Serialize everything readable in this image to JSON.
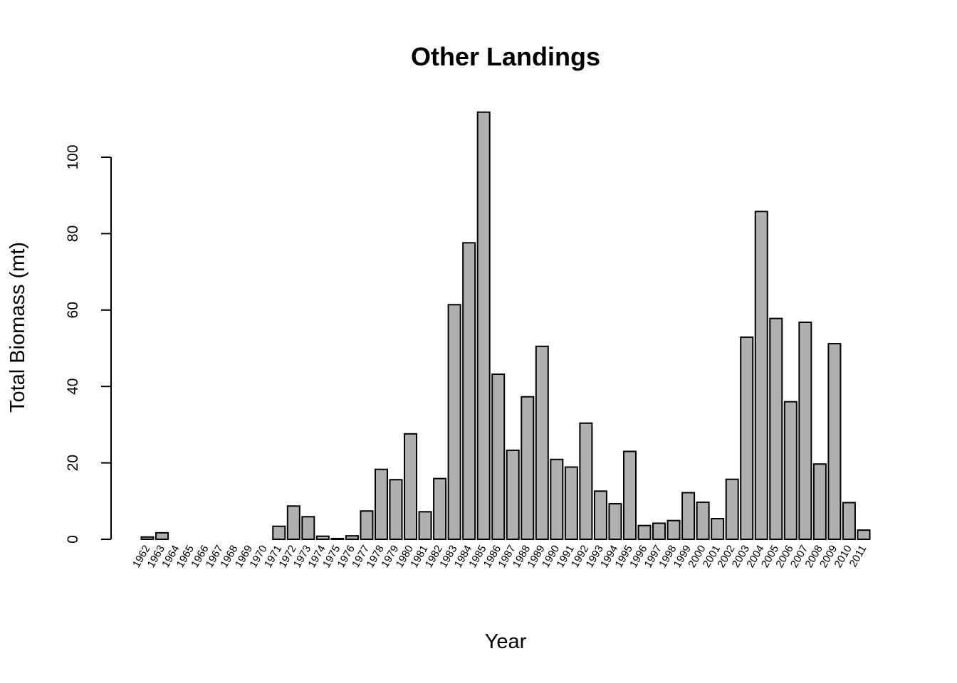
{
  "chart_data": {
    "type": "bar",
    "title": "Other  Landings",
    "xlabel": "Year",
    "ylabel": "Total Biomass (mt)",
    "categories": [
      "1962",
      "1963",
      "1964",
      "1965",
      "1966",
      "1967",
      "1968",
      "1969",
      "1970",
      "1971",
      "1972",
      "1973",
      "1974",
      "1975",
      "1976",
      "1977",
      "1978",
      "1979",
      "1980",
      "1981",
      "1982",
      "1983",
      "1984",
      "1985",
      "1986",
      "1987",
      "1988",
      "1989",
      "1990",
      "1991",
      "1992",
      "1993",
      "1994",
      "1995",
      "1996",
      "1997",
      "1998",
      "1999",
      "2000",
      "2001",
      "2002",
      "2003",
      "2004",
      "2005",
      "2006",
      "2007",
      "2008",
      "2009",
      "2010",
      "2011"
    ],
    "values": [
      0.6,
      1.7,
      0,
      0,
      0,
      0,
      0,
      0,
      0,
      3.4,
      8.7,
      5.9,
      0.8,
      0.2,
      0.9,
      7.4,
      18.3,
      15.6,
      27.6,
      7.2,
      15.9,
      61.4,
      77.6,
      111.8,
      43.2,
      23.3,
      37.3,
      50.5,
      20.9,
      18.9,
      30.4,
      12.6,
      9.3,
      23.0,
      3.6,
      4.2,
      4.9,
      12.2,
      9.7,
      5.4,
      15.7,
      52.9,
      85.8,
      57.8,
      36.0,
      56.8,
      19.7,
      51.2,
      9.6,
      2.4
    ],
    "yticks": [
      0,
      20,
      40,
      60,
      80,
      100
    ],
    "ylim": [
      0,
      111.8
    ],
    "bar_color": "#b0b0b0",
    "grid": false,
    "legend": "none"
  }
}
